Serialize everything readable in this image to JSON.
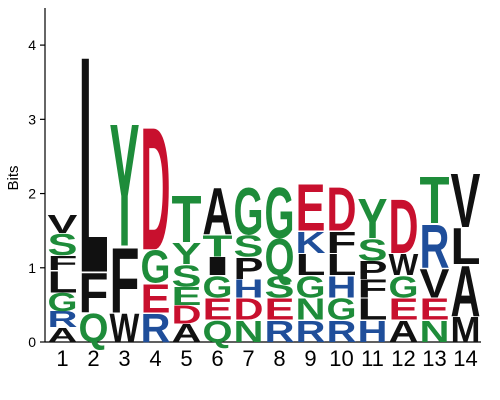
{
  "chart_data": {
    "type": "sequence-logo",
    "ylabel": "Bits",
    "ylim": [
      0,
      4.5
    ],
    "yticks": [
      "0",
      "1",
      "2",
      "3",
      "4"
    ],
    "x_labels": [
      "1",
      "2",
      "3",
      "4",
      "5",
      "6",
      "7",
      "8",
      "9",
      "10",
      "11",
      "12",
      "13",
      "14"
    ],
    "colors": {
      "green": "#1e8c3a",
      "red": "#c8102e",
      "blue": "#1f4e9a",
      "black": "#111111"
    },
    "positions": [
      {
        "position": "1",
        "stack": [
          {
            "letter": "A",
            "bits": 0.2,
            "color": "black"
          },
          {
            "letter": "R",
            "bits": 0.22,
            "color": "blue"
          },
          {
            "letter": "G",
            "bits": 0.25,
            "color": "green"
          },
          {
            "letter": "L",
            "bits": 0.3,
            "color": "black"
          },
          {
            "letter": "F",
            "bits": 0.2,
            "color": "black"
          },
          {
            "letter": "S",
            "bits": 0.3,
            "color": "green"
          },
          {
            "letter": "V",
            "bits": 0.25,
            "color": "black"
          }
        ]
      },
      {
        "position": "2",
        "stack": [
          {
            "letter": "Q",
            "bits": 0.4,
            "color": "green"
          },
          {
            "letter": "F",
            "bits": 0.55,
            "color": "black"
          },
          {
            "letter": "L",
            "bits": 3.0,
            "color": "black"
          }
        ]
      },
      {
        "position": "3",
        "stack": [
          {
            "letter": "W",
            "bits": 0.4,
            "color": "black"
          },
          {
            "letter": "F",
            "bits": 0.9,
            "color": "black"
          },
          {
            "letter": "Y",
            "bits": 1.7,
            "color": "green"
          }
        ]
      },
      {
        "position": "4",
        "stack": [
          {
            "letter": "R",
            "bits": 0.4,
            "color": "blue"
          },
          {
            "letter": "E",
            "bits": 0.4,
            "color": "red"
          },
          {
            "letter": "G",
            "bits": 0.45,
            "color": "green"
          },
          {
            "letter": "D",
            "bits": 1.7,
            "color": "red"
          }
        ]
      },
      {
        "position": "5",
        "stack": [
          {
            "letter": "A",
            "bits": 0.25,
            "color": "black"
          },
          {
            "letter": "D",
            "bits": 0.25,
            "color": "red"
          },
          {
            "letter": "E",
            "bits": 0.25,
            "color": "green"
          },
          {
            "letter": "S",
            "bits": 0.3,
            "color": "green"
          },
          {
            "letter": "Y",
            "bits": 0.3,
            "color": "green"
          },
          {
            "letter": "T",
            "bits": 0.65,
            "color": "green"
          }
        ]
      },
      {
        "position": "6",
        "stack": [
          {
            "letter": "Q",
            "bits": 0.3,
            "color": "green"
          },
          {
            "letter": "E",
            "bits": 0.3,
            "color": "red"
          },
          {
            "letter": "G",
            "bits": 0.3,
            "color": "green"
          },
          {
            "letter": "I",
            "bits": 0.25,
            "color": "black"
          },
          {
            "letter": "T",
            "bits": 0.3,
            "color": "green"
          },
          {
            "letter": "A",
            "bits": 0.65,
            "color": "black"
          }
        ]
      },
      {
        "position": "7",
        "stack": [
          {
            "letter": "N",
            "bits": 0.3,
            "color": "green"
          },
          {
            "letter": "D",
            "bits": 0.3,
            "color": "red"
          },
          {
            "letter": "H",
            "bits": 0.25,
            "color": "blue"
          },
          {
            "letter": "P",
            "bits": 0.3,
            "color": "black"
          },
          {
            "letter": "S",
            "bits": 0.3,
            "color": "green"
          },
          {
            "letter": "G",
            "bits": 0.65,
            "color": "green"
          }
        ]
      },
      {
        "position": "8",
        "stack": [
          {
            "letter": "R",
            "bits": 0.3,
            "color": "blue"
          },
          {
            "letter": "E",
            "bits": 0.3,
            "color": "red"
          },
          {
            "letter": "S",
            "bits": 0.3,
            "color": "green"
          },
          {
            "letter": "Q",
            "bits": 0.5,
            "color": "green"
          },
          {
            "letter": "G",
            "bits": 0.7,
            "color": "green"
          }
        ]
      },
      {
        "position": "9",
        "stack": [
          {
            "letter": "R",
            "bits": 0.3,
            "color": "blue"
          },
          {
            "letter": "N",
            "bits": 0.3,
            "color": "green"
          },
          {
            "letter": "G",
            "bits": 0.3,
            "color": "green"
          },
          {
            "letter": "L",
            "bits": 0.3,
            "color": "black"
          },
          {
            "letter": "K",
            "bits": 0.3,
            "color": "blue"
          },
          {
            "letter": "E",
            "bits": 0.65,
            "color": "red"
          }
        ]
      },
      {
        "position": "10",
        "stack": [
          {
            "letter": "R",
            "bits": 0.3,
            "color": "blue"
          },
          {
            "letter": "G",
            "bits": 0.3,
            "color": "green"
          },
          {
            "letter": "H",
            "bits": 0.3,
            "color": "blue"
          },
          {
            "letter": "L",
            "bits": 0.3,
            "color": "black"
          },
          {
            "letter": "F",
            "bits": 0.3,
            "color": "black"
          },
          {
            "letter": "D",
            "bits": 0.6,
            "color": "red"
          }
        ]
      },
      {
        "position": "11",
        "stack": [
          {
            "letter": "H",
            "bits": 0.3,
            "color": "blue"
          },
          {
            "letter": "L",
            "bits": 0.3,
            "color": "black"
          },
          {
            "letter": "F",
            "bits": 0.25,
            "color": "black"
          },
          {
            "letter": "P",
            "bits": 0.25,
            "color": "black"
          },
          {
            "letter": "S",
            "bits": 0.3,
            "color": "green"
          },
          {
            "letter": "Y",
            "bits": 0.55,
            "color": "green"
          }
        ]
      },
      {
        "position": "12",
        "stack": [
          {
            "letter": "A",
            "bits": 0.3,
            "color": "black"
          },
          {
            "letter": "E",
            "bits": 0.3,
            "color": "red"
          },
          {
            "letter": "G",
            "bits": 0.3,
            "color": "green"
          },
          {
            "letter": "W",
            "bits": 0.3,
            "color": "black"
          },
          {
            "letter": "D",
            "bits": 0.75,
            "color": "red"
          }
        ]
      },
      {
        "position": "13",
        "stack": [
          {
            "letter": "N",
            "bits": 0.3,
            "color": "green"
          },
          {
            "letter": "E",
            "bits": 0.3,
            "color": "red"
          },
          {
            "letter": "V",
            "bits": 0.4,
            "color": "black"
          },
          {
            "letter": "R",
            "bits": 0.6,
            "color": "blue"
          },
          {
            "letter": "T",
            "bits": 0.65,
            "color": "green"
          }
        ]
      },
      {
        "position": "14",
        "stack": [
          {
            "letter": "M",
            "bits": 0.35,
            "color": "black"
          },
          {
            "letter": "A",
            "bits": 0.7,
            "color": "black"
          },
          {
            "letter": "L",
            "bits": 0.5,
            "color": "black"
          },
          {
            "letter": "V",
            "bits": 0.75,
            "color": "black"
          }
        ]
      }
    ]
  }
}
